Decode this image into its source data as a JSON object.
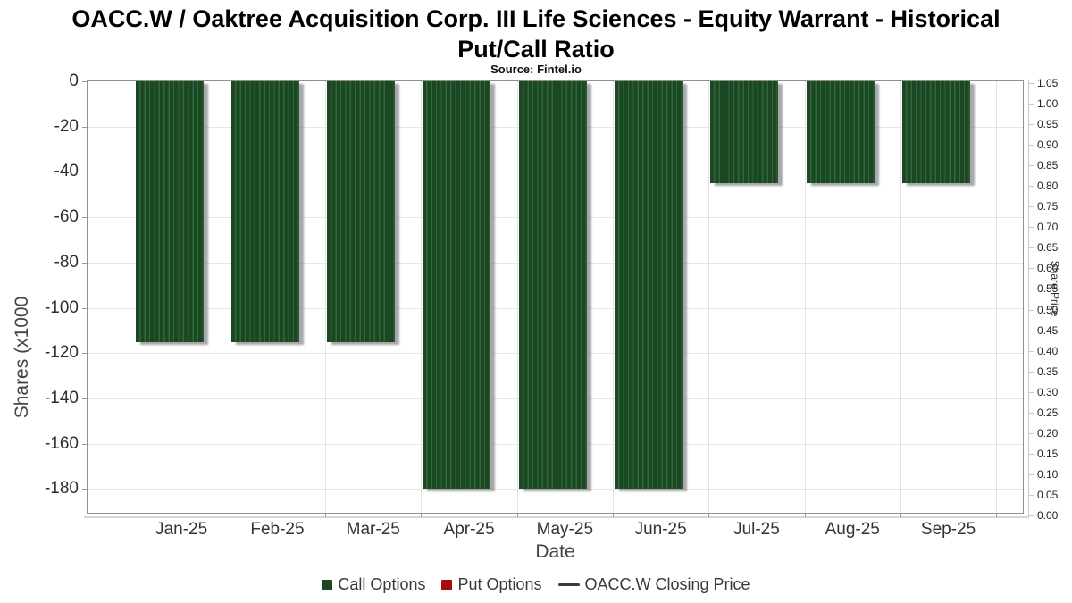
{
  "chart": {
    "title_line1": "OACC.W / Oaktree Acquisition Corp. III Life Sciences - Equity Warrant - Historical",
    "title_line2": "Put/Call Ratio",
    "source": "Source: Fintel.io",
    "x_axis": {
      "label": "Date",
      "categories": [
        "Jan-25",
        "Feb-25",
        "Mar-25",
        "Apr-25",
        "May-25",
        "Jun-25",
        "Jul-25",
        "Aug-25",
        "Sep-25"
      ]
    },
    "y_axis_left": {
      "label": "Shares (x1000",
      "tick_labels": [
        "0",
        "-20",
        "-40",
        "-60",
        "-80",
        "-100",
        "-120",
        "-140",
        "-160",
        "-180"
      ],
      "tick_values": [
        0,
        -20,
        -40,
        -60,
        -80,
        -100,
        -120,
        -140,
        -160,
        -180
      ]
    },
    "y_axis_right": {
      "label": "Share Price",
      "tick_labels": [
        "1.05",
        "1.00",
        "0.95",
        "0.90",
        "0.85",
        "0.80",
        "0.75",
        "0.70",
        "0.65",
        "0.60",
        "0.55",
        "0.50",
        "0.45",
        "0.40",
        "0.35",
        "0.30",
        "0.25",
        "0.20",
        "0.15",
        "0.10",
        "0.05",
        "0.00"
      ]
    },
    "legend": [
      {
        "label": "Call Options",
        "symbol": "square",
        "color": "#1b4722"
      },
      {
        "label": "Put Options",
        "symbol": "square",
        "color": "#a50d0d"
      },
      {
        "label": "OACC.W Closing Price",
        "symbol": "line",
        "color": "#3a3a3a"
      }
    ],
    "colors": {
      "bar_base": "#1b4722",
      "bar_stripe": "#30683c",
      "put_red": "#a50d0d",
      "gridline": "#e7e7e7"
    }
  },
  "chart_data": {
    "type": "bar",
    "title": "OACC.W / Oaktree Acquisition Corp. III Life Sciences - Equity Warrant - Historical Put/Call Ratio",
    "subtitle": "Source: Fintel.io",
    "xlabel": "Date",
    "ylabel": "Shares (x1000",
    "y2label": "Share Price",
    "categories": [
      "Jan-25",
      "Feb-25",
      "Mar-25",
      "Apr-25",
      "May-25",
      "Jun-25",
      "Jul-25",
      "Aug-25",
      "Sep-25"
    ],
    "series": [
      {
        "name": "Call Options",
        "type": "bar",
        "color": "#1b4722",
        "values": [
          -115,
          -115,
          -115,
          -180,
          -180,
          -180,
          -45,
          -45,
          -45
        ]
      },
      {
        "name": "Put Options",
        "type": "bar",
        "color": "#a50d0d",
        "values": [
          0,
          0,
          0,
          0,
          0,
          0,
          0,
          0,
          0
        ]
      },
      {
        "name": "OACC.W Closing Price",
        "type": "line",
        "color": "#3a3a3a",
        "values": []
      }
    ],
    "ylim": [
      -190.5,
      0
    ],
    "y2lim": [
      0,
      1.05
    ],
    "grid": true,
    "legend_position": "bottom"
  }
}
